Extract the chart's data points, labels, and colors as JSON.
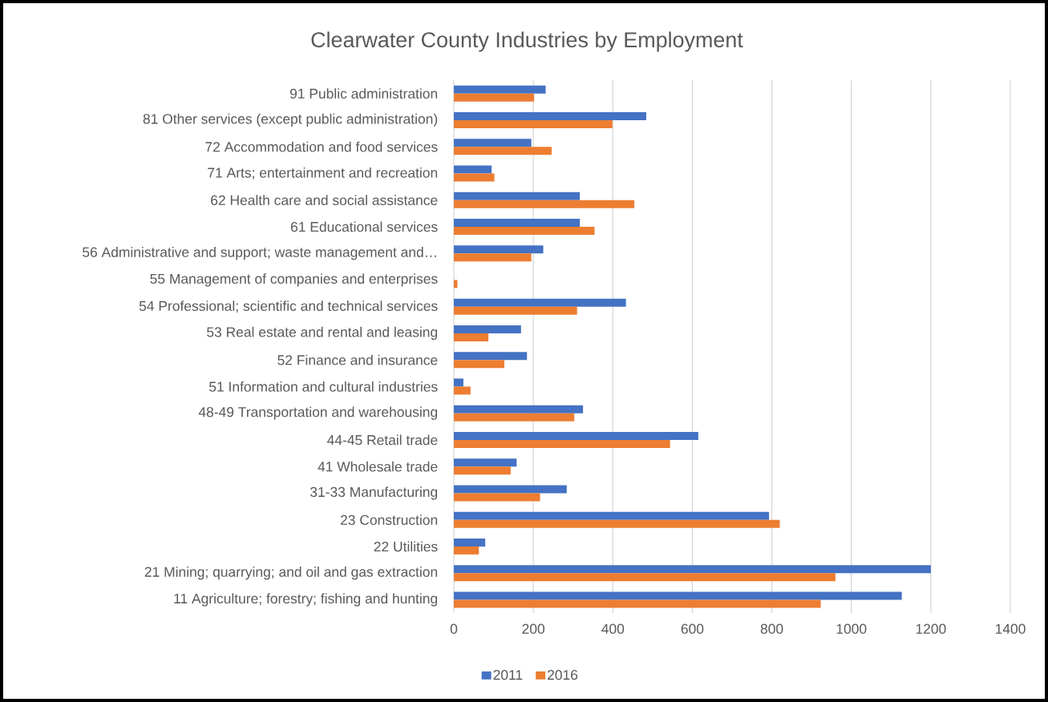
{
  "chart_data": {
    "type": "bar",
    "orientation": "horizontal",
    "title": "Clearwater County Industries by Employment",
    "categories": [
      "91 Public administration",
      "81 Other services (except public administration)",
      "72 Accommodation and food services",
      "71 Arts; entertainment and recreation",
      "62 Health care and social assistance",
      "61 Educational services",
      "56 Administrative and support; waste management and…",
      "55 Management of companies and enterprises",
      "54 Professional; scientific and technical services",
      "53 Real estate and rental and leasing",
      "52 Finance and insurance",
      "51 Information and cultural industries",
      "48-49 Transportation and warehousing",
      "44-45 Retail trade",
      "41 Wholesale trade",
      "31-33 Manufacturing",
      "23 Construction",
      "22 Utilities",
      "21 Mining; quarrying; and oil and gas extraction",
      "11 Agriculture; forestry; fishing and hunting"
    ],
    "series": [
      {
        "name": "2011",
        "color": "#4472c4",
        "values": [
          231,
          484,
          195,
          95,
          317,
          317,
          225,
          0,
          433,
          169,
          184,
          24,
          325,
          615,
          158,
          284,
          793,
          79,
          1200,
          1127
        ]
      },
      {
        "name": "2016",
        "color": "#ed7d31",
        "values": [
          202,
          399,
          246,
          102,
          454,
          354,
          195,
          9,
          310,
          87,
          127,
          42,
          303,
          544,
          143,
          217,
          820,
          63,
          960,
          923
        ]
      }
    ],
    "xlim": [
      0,
      1400
    ],
    "xticks": [
      0,
      200,
      400,
      600,
      800,
      1000,
      1200,
      1400
    ],
    "grid": "x",
    "legend": "bottom"
  }
}
